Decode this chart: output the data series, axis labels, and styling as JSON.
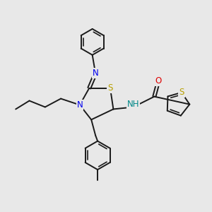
{
  "background_color": "#e8e8e8",
  "bond_color": "#1a1a1a",
  "atom_colors": {
    "N": "#0000ee",
    "S_thiazoline": "#b8a000",
    "S_thiophene": "#b8a000",
    "O": "#dd0000",
    "NH": "#008888"
  },
  "figsize": [
    3.0,
    3.0
  ],
  "dpi": 100
}
